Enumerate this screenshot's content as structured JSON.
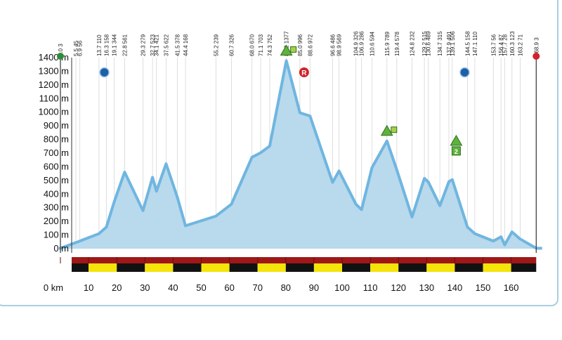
{
  "chart_data": {
    "type": "area",
    "title": "",
    "xlabel": "",
    "ylabel": "",
    "x_unit_label": "km",
    "y_unit": "m",
    "xlim": [
      -0.5,
      171
    ],
    "ylim": [
      0,
      1400
    ],
    "yticks": [
      0,
      100,
      200,
      300,
      400,
      500,
      600,
      700,
      800,
      900,
      1000,
      1100,
      1200,
      1300,
      1400
    ],
    "ytick_labels": [
      "0 m",
      "100 m",
      "200 m",
      "300 m",
      "400 m",
      "500 m",
      "600 m",
      "700 m",
      "800 m",
      "900 m",
      "1000 m",
      "1100 m",
      "1200 m",
      "1300 m",
      "1400 m"
    ],
    "xticks": [
      0,
      10,
      20,
      30,
      40,
      50,
      60,
      70,
      80,
      90,
      100,
      110,
      120,
      130,
      140,
      150,
      160
    ],
    "xtick_labels": [
      "0  km",
      "10",
      "20",
      "30",
      "40",
      "50",
      "60",
      "70",
      "80",
      "90",
      "100",
      "110",
      "120",
      "130",
      "140",
      "150",
      "160"
    ],
    "grid": true,
    "series": [
      {
        "x": [
          0,
          5.5,
          6.9,
          13.7,
          16.3,
          19.1,
          22.8,
          29.3,
          32.7,
          34.1,
          37.5,
          41.5,
          44.4,
          55.2,
          60.7,
          68.0,
          71.1,
          74.3,
          80.2,
          85.0,
          88.6,
          96.6,
          98.9,
          104.9,
          106.9,
          110.6,
          115.9,
          119.4,
          124.8,
          129.2,
          130.6,
          134.7,
          137.9,
          139.1,
          144.5,
          147.1,
          153.7,
          156.4,
          157.7,
          160.3,
          163.2,
          168.9
        ],
        "y": [
          3,
          45,
          56,
          110,
          158,
          344,
          561,
          279,
          523,
          421,
          622,
          378,
          168,
          239,
          326,
          670,
          703,
          752,
          1377,
          996,
          972,
          486,
          569,
          326,
          286,
          594,
          789,
          578,
          232,
          515,
          489,
          315,
          491,
          506,
          158,
          110,
          56,
          87,
          28,
          123,
          71,
          3
        ]
      }
    ],
    "point_labels": [
      {
        "km": "0.0",
        "alt": "3",
        "color": "#2e8b3a"
      },
      {
        "km": "5.5",
        "alt": "45"
      },
      {
        "km": "6.9",
        "alt": "56"
      },
      {
        "km": "13.7",
        "alt": "110"
      },
      {
        "km": "16.3",
        "alt": "158"
      },
      {
        "km": "19.1",
        "alt": "344"
      },
      {
        "km": "22.8",
        "alt": "561"
      },
      {
        "km": "29.3",
        "alt": "279"
      },
      {
        "km": "32.7",
        "alt": "523"
      },
      {
        "km": "34.1",
        "alt": "421"
      },
      {
        "km": "37.5",
        "alt": "622"
      },
      {
        "km": "41.5",
        "alt": "378"
      },
      {
        "km": "44.4",
        "alt": "168"
      },
      {
        "km": "55.2",
        "alt": "239"
      },
      {
        "km": "60.7",
        "alt": "326"
      },
      {
        "km": "68.0",
        "alt": "670"
      },
      {
        "km": "71.1",
        "alt": "703"
      },
      {
        "km": "74.3",
        "alt": "752"
      },
      {
        "km": "80.2",
        "alt": "1377"
      },
      {
        "km": "85.0",
        "alt": "996"
      },
      {
        "km": "88.6",
        "alt": "972"
      },
      {
        "km": "96.6",
        "alt": "486"
      },
      {
        "km": "98.9",
        "alt": "569"
      },
      {
        "km": "104.9",
        "alt": "326"
      },
      {
        "km": "106.9",
        "alt": "286"
      },
      {
        "km": "110.6",
        "alt": "594"
      },
      {
        "km": "115.9",
        "alt": "789"
      },
      {
        "km": "119.4",
        "alt": "578"
      },
      {
        "km": "124.8",
        "alt": "232"
      },
      {
        "km": "129.2",
        "alt": "515"
      },
      {
        "km": "130.6",
        "alt": "489"
      },
      {
        "km": "134.7",
        "alt": "315"
      },
      {
        "km": "137.9",
        "alt": "491"
      },
      {
        "km": "139.1",
        "alt": "506"
      },
      {
        "km": "144.5",
        "alt": "158"
      },
      {
        "km": "147.1",
        "alt": "110"
      },
      {
        "km": "153.7",
        "alt": "56"
      },
      {
        "km": "156.4",
        "alt": "87"
      },
      {
        "km": "157.7",
        "alt": "28"
      },
      {
        "km": "160.3",
        "alt": "123"
      },
      {
        "km": "163.2",
        "alt": "71"
      },
      {
        "km": "168.9",
        "alt": "3",
        "color": "#d2232a"
      }
    ],
    "markers": [
      {
        "type": "start-dot",
        "km": 0,
        "color": "#2e8b3a"
      },
      {
        "type": "finish-dot",
        "km": 168.9,
        "color": "#d2232a"
      },
      {
        "type": "feed-zone",
        "km": 15.6,
        "icon": "blue-circle"
      },
      {
        "type": "feed-zone",
        "km": 143.5,
        "icon": "blue-circle"
      },
      {
        "type": "climb",
        "km": 80.2,
        "category": "1",
        "icon": "green-triangle"
      },
      {
        "type": "refreshment",
        "km": 86.5,
        "label": "R",
        "color": "#d2232a"
      },
      {
        "type": "climb",
        "km": 115.9,
        "category": "1",
        "icon": "green-triangle"
      },
      {
        "type": "climb",
        "km": 140.5,
        "category": "2",
        "icon": "green-triangle-box"
      }
    ],
    "colors": {
      "fill": "#b9d9ec",
      "line": "#6fb6e0",
      "bar_dark": "#a01717",
      "bar_yellow": "#f4e40a",
      "bar_black": "#111111"
    }
  }
}
